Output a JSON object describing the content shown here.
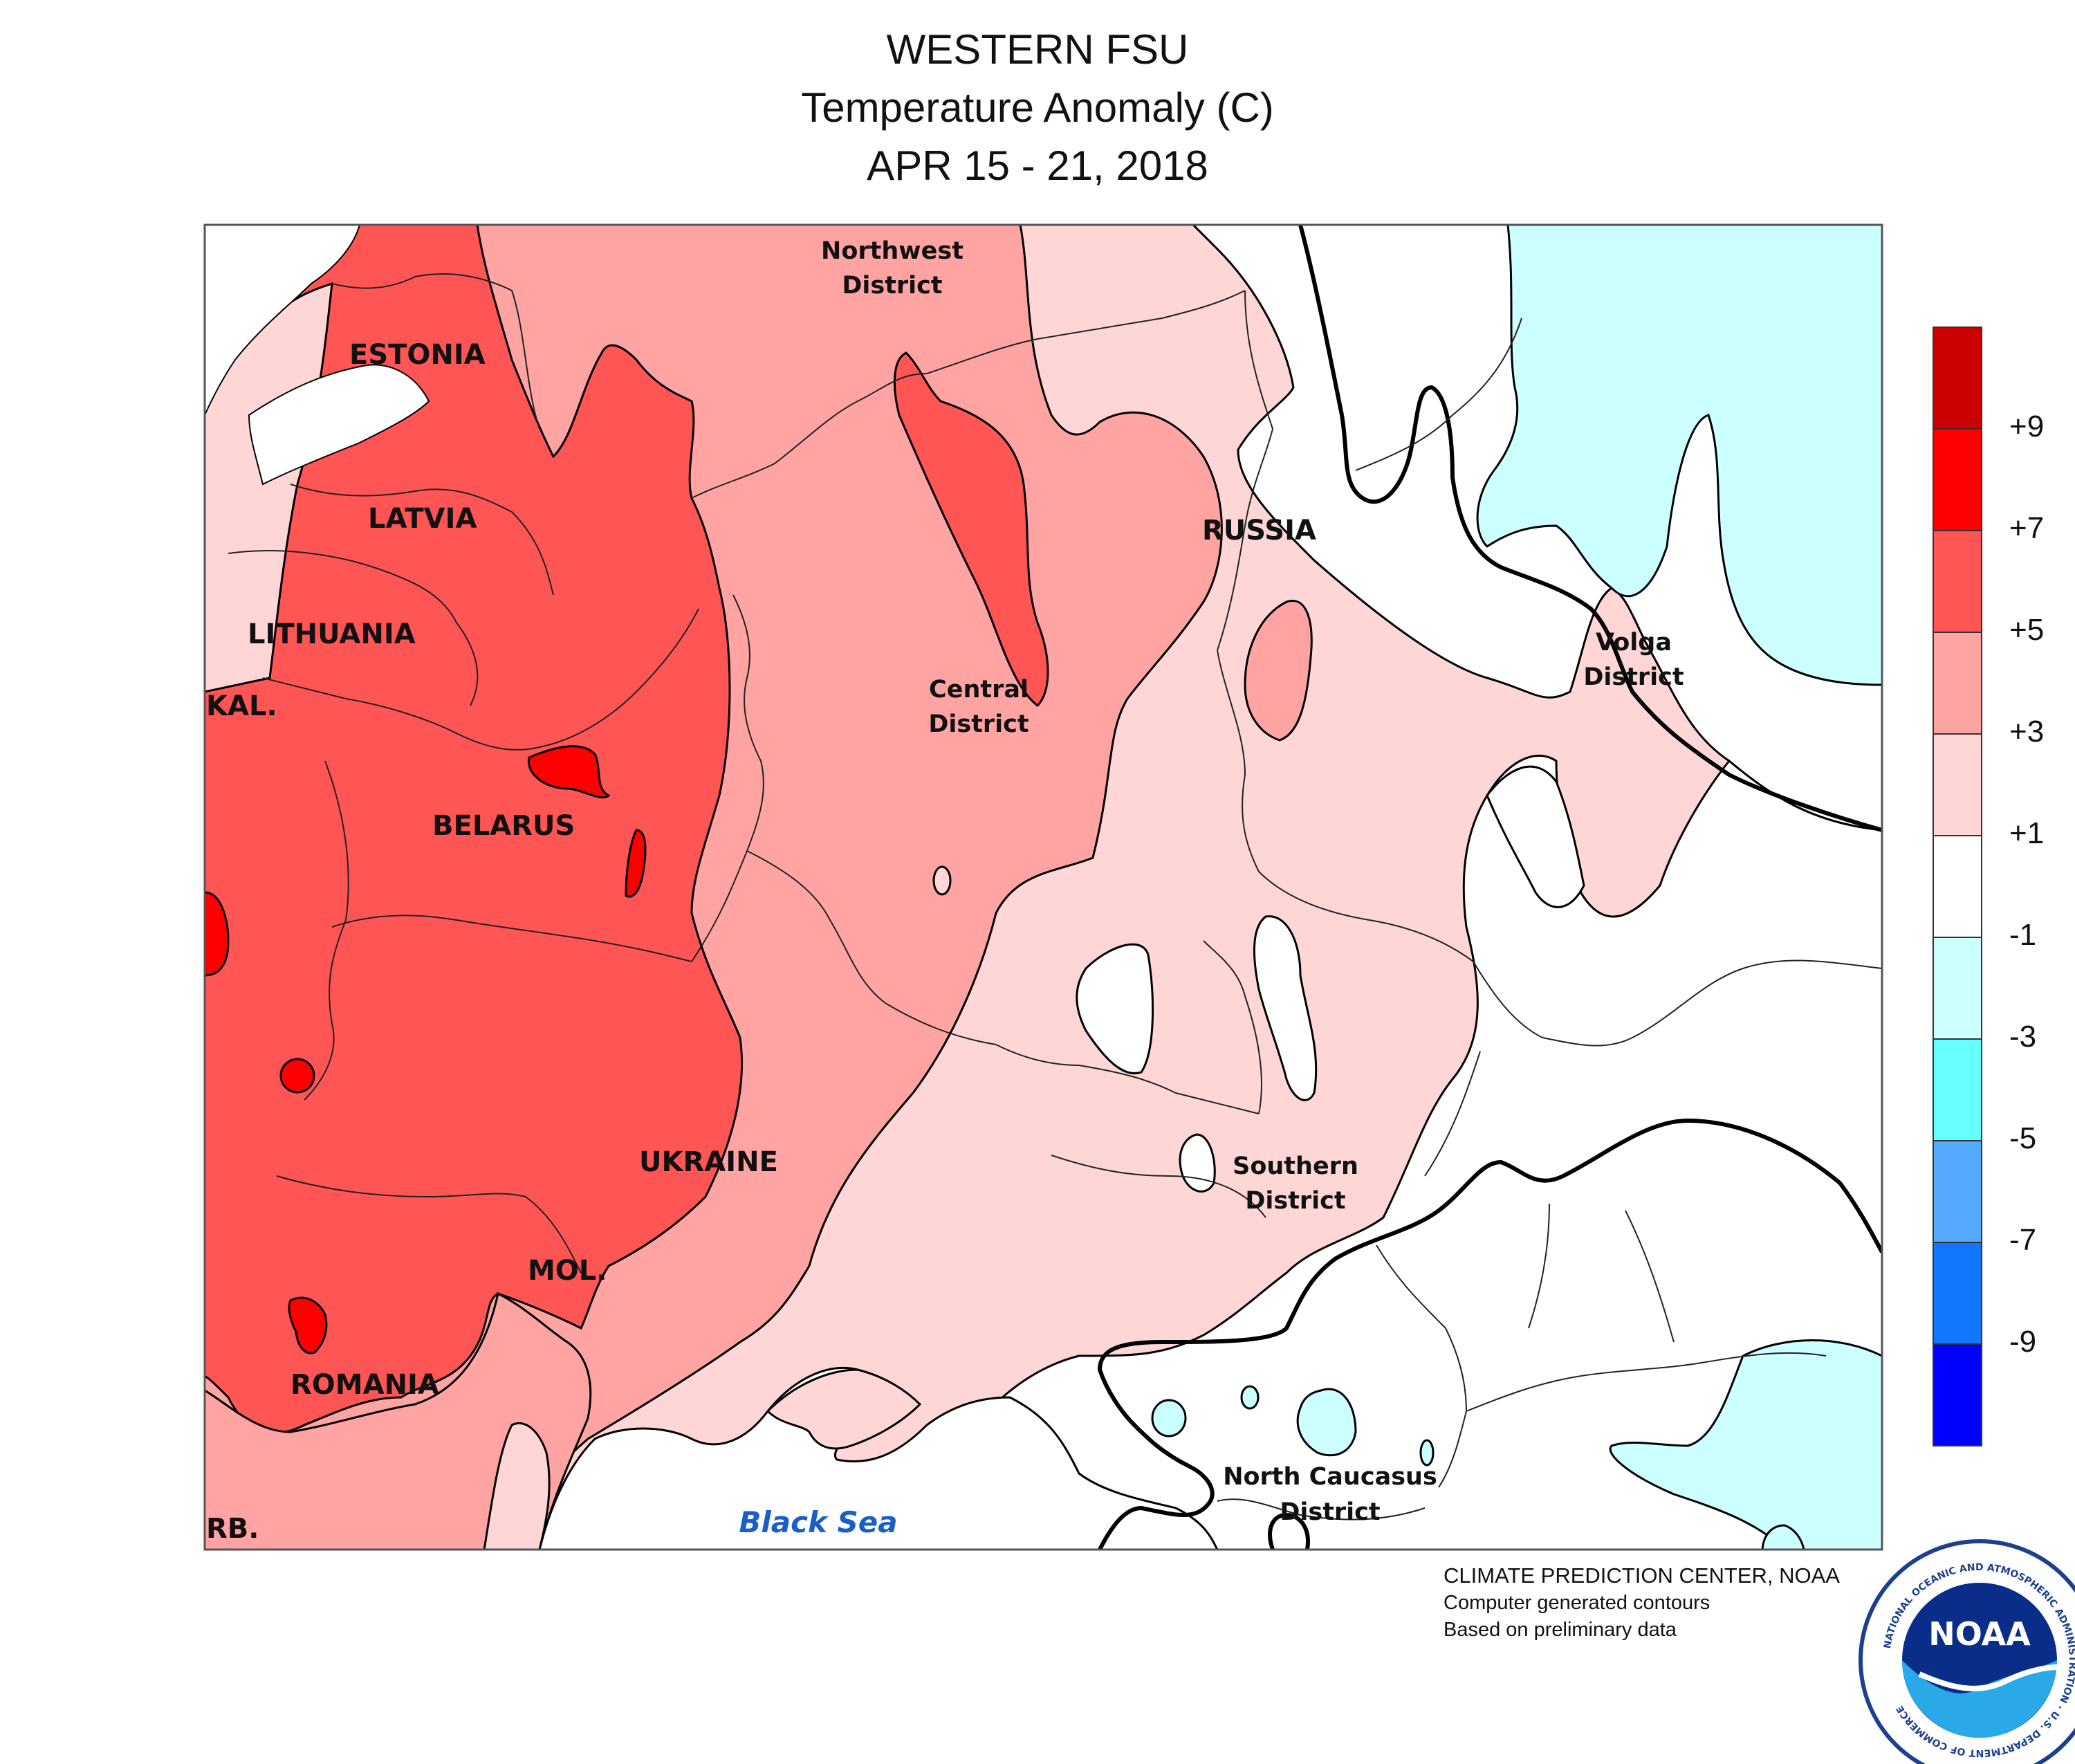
{
  "title": {
    "line1": "WESTERN FSU",
    "line2": "Temperature Anomaly (C)",
    "line3": "APR 15 - 21, 2018"
  },
  "map_labels": {
    "estonia": "ESTONIA",
    "latvia": "LATVIA",
    "lithuania": "LITHUANIA",
    "kaliningrad": "KAL.",
    "belarus": "BELARUS",
    "ukraine": "UKRAINE",
    "moldova": "MOL.",
    "romania": "ROMANIA",
    "serbia": "RB.",
    "russia": "RUSSIA",
    "northwest_district": [
      "Northwest",
      "District"
    ],
    "central_district": [
      "Central",
      "District"
    ],
    "volga_district": [
      "Volga",
      "District"
    ],
    "southern_district": [
      "Southern",
      "District"
    ],
    "north_caucasus_district": [
      "North Caucasus",
      "District"
    ],
    "black_sea": "Black Sea"
  },
  "legend": {
    "ticks": [
      "+9",
      "+7",
      "+5",
      "+3",
      "+1",
      "-1",
      "-3",
      "-5",
      "-7",
      "-9"
    ],
    "colors": [
      "#cc0000",
      "#ff0000",
      "#ff5555",
      "#ffa3a3",
      "#ffd6d6",
      "#ffffff",
      "#ccffff",
      "#66ffff",
      "#55aaff",
      "#1177ff",
      "#0000ff"
    ]
  },
  "credits": {
    "line1": "CLIMATE PREDICTION CENTER, NOAA",
    "line2": "Computer generated contours",
    "line3": "Based on preliminary data"
  },
  "logo": {
    "text": "NOAA",
    "ring_text": "NATIONAL OCEANIC AND ATMOSPHERIC ADMINISTRATION · U.S. DEPARTMENT OF COMMERCE"
  },
  "palette": {
    "c7": "#ff5555",
    "c5": "#ffa3a3",
    "c3": "#ffd6d6",
    "c9": "#ff0000",
    "cool1": "#ccffff",
    "sea_label": "#1a5fc8"
  }
}
